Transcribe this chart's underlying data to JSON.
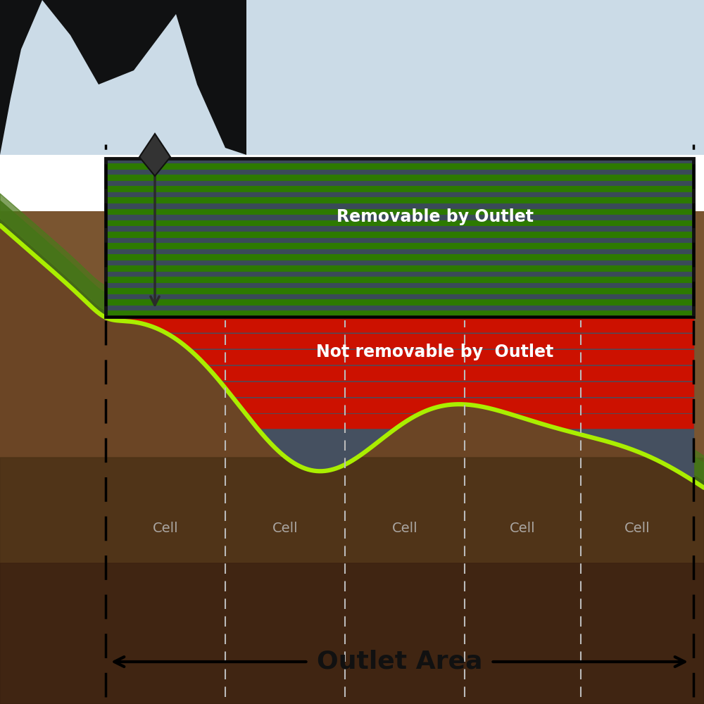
{
  "fig_width": 10,
  "fig_height": 10,
  "soil_color": "#6b4a2a",
  "soil_dark": "#4a3018",
  "soil_mid": "#7a5535",
  "grass_dark": "#3a6b15",
  "lime_green": "#aaee00",
  "stripe_green": "#2d7a00",
  "stripe_gray_green": "#4a6055",
  "stripe_red": "#cc1100",
  "stripe_blue_gray": "#3a4a58",
  "stripe_blue_gray2": "#455060",
  "box_border": "#111111",
  "arrow_color": "#2a2a2a",
  "text_white": "#ffffff",
  "text_black": "#111111",
  "text_gray": "#bbbbbb",
  "outlet_area_label": "Outlet Area",
  "removable_label": "Removable by Outlet",
  "not_removable_label": "Not removable by  Outlet",
  "cell_label": "Cell",
  "dashed_gray": "#bbbbbb",
  "transparent_top": true
}
